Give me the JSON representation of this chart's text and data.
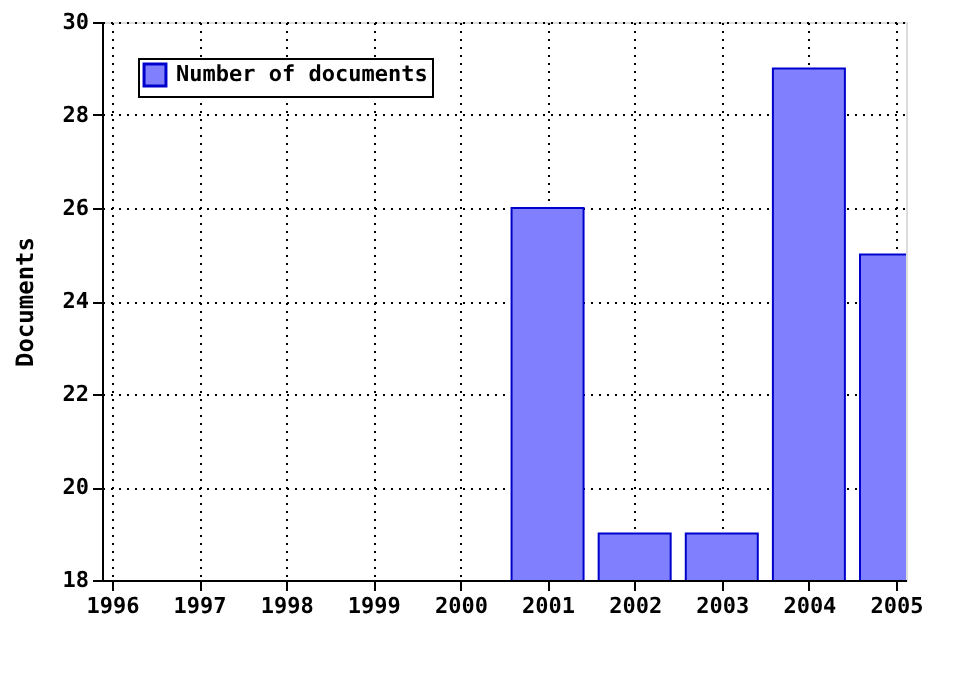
{
  "chart_data": {
    "type": "bar",
    "ylabel": "Documents",
    "x": [
      2001,
      2002,
      2003,
      2004,
      2005
    ],
    "series": [
      {
        "name": "Number of documents",
        "color": "#8080ff",
        "values": [
          26,
          19,
          19,
          29,
          25
        ]
      }
    ],
    "xlim": [
      1996,
      2005
    ],
    "xticks": [
      1996,
      1997,
      1998,
      1999,
      2000,
      2001,
      2002,
      2003,
      2004,
      2005
    ],
    "ylim": [
      18,
      30
    ],
    "yticks": [
      18,
      20,
      22,
      24,
      26,
      28,
      30
    ],
    "grid": true,
    "legend": "top left"
  }
}
